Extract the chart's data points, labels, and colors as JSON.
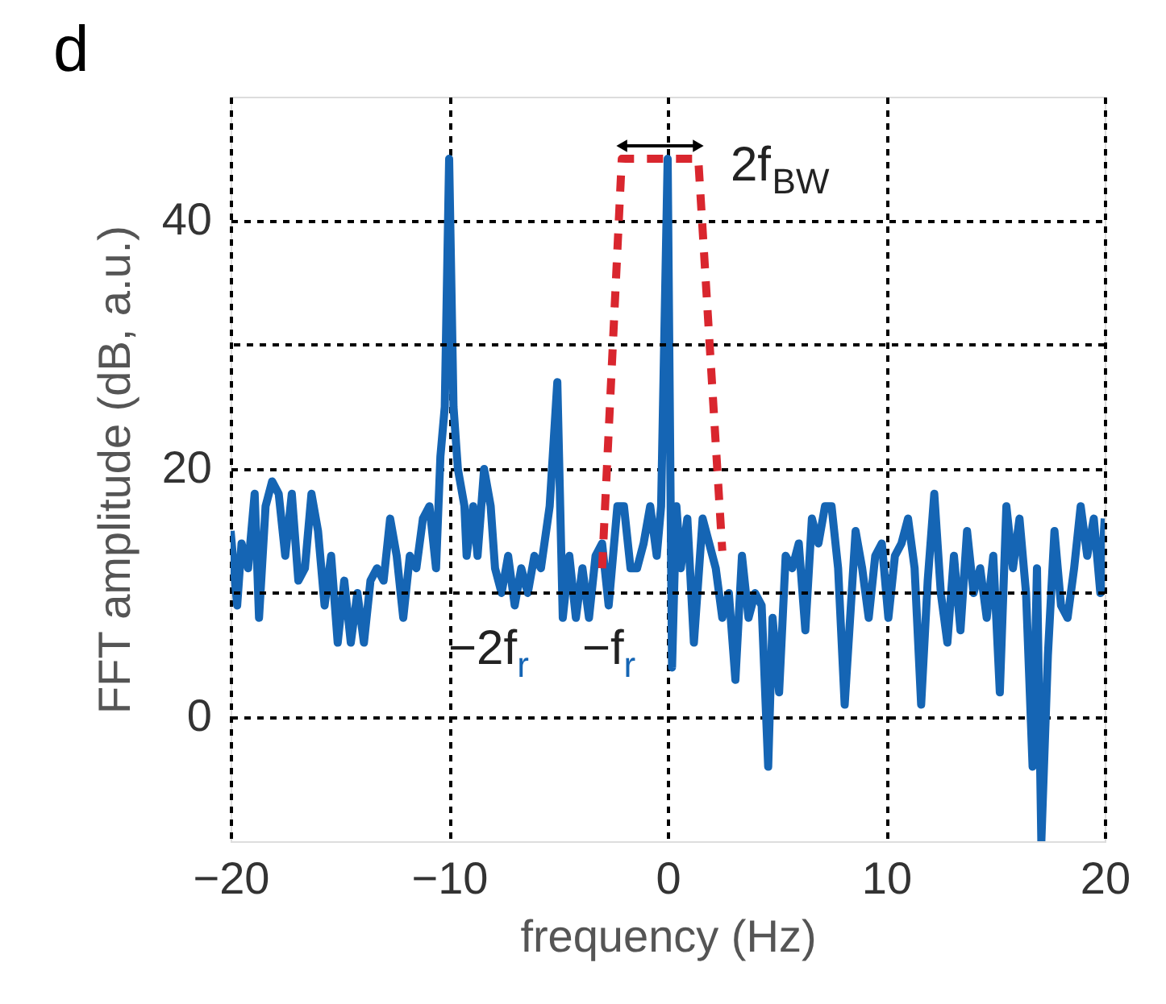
{
  "chart_data": {
    "type": "line",
    "title": "d",
    "xlabel": "frequency (Hz)",
    "ylabel": "FFT amplitude (dB, a.u.)",
    "xlim": [
      -20,
      20
    ],
    "xticks": [
      -20,
      -10,
      0,
      10,
      20
    ],
    "ylim": [
      -10,
      50
    ],
    "yticks": [
      0,
      20,
      40
    ],
    "grid": true,
    "series": [
      {
        "color": "#1565b4",
        "x": [
          -20,
          -19.7,
          -19.5,
          -19.2,
          -18.9,
          -18.7,
          -18.4,
          -18.1,
          -17.8,
          -17.5,
          -17.2,
          -16.9,
          -16.6,
          -16.3,
          -16,
          -15.7,
          -15.4,
          -15.1,
          -14.8,
          -14.5,
          -14.2,
          -13.9,
          -13.6,
          -13.3,
          -13,
          -12.7,
          -12.4,
          -12.1,
          -11.8,
          -11.5,
          -11.2,
          -10.9,
          -10.6,
          -10.4,
          -10.2,
          -10,
          -9.8,
          -9.6,
          -9.3,
          -9.2,
          -8.9,
          -8.7,
          -8.4,
          -8.1,
          -7.9,
          -7.6,
          -7.3,
          -7,
          -6.7,
          -6.4,
          -6.1,
          -5.8,
          -5.4,
          -5.05,
          -4.8,
          -4.5,
          -4.2,
          -3.9,
          -3.6,
          -3.3,
          -3,
          -2.7,
          -2.3,
          -2,
          -1.7,
          -1.4,
          -1.1,
          -0.8,
          -0.5,
          -0.3,
          0,
          0.2,
          0.4,
          0.6,
          0.9,
          1.2,
          1.6,
          1.9,
          2.2,
          2.5,
          2.8,
          3.1,
          3.4,
          3.7,
          4,
          4.3,
          4.6,
          4.8,
          5.1,
          5.4,
          5.7,
          6,
          6.3,
          6.6,
          6.9,
          7.2,
          7.5,
          7.8,
          8.1,
          8.6,
          8.9,
          9.2,
          9.5,
          9.8,
          10.1,
          10.4,
          10.7,
          11,
          11.3,
          11.6,
          11.9,
          12.2,
          12.5,
          12.8,
          13.1,
          13.4,
          13.7,
          14,
          14.3,
          14.6,
          14.9,
          15.2,
          15.5,
          15.8,
          16.1,
          16.4,
          16.7,
          16.9,
          17.1,
          17.4,
          17.7,
          18,
          18.3,
          18.6,
          18.9,
          19.2,
          19.5,
          19.8,
          20
        ],
        "values": [
          15,
          9,
          14,
          12,
          18,
          8,
          17,
          19,
          18,
          13,
          18,
          11,
          12,
          18,
          15,
          9,
          13,
          6,
          11,
          6,
          10,
          6,
          11,
          12,
          11,
          16,
          13,
          8,
          13,
          12,
          16,
          17,
          12,
          21,
          25,
          45,
          25,
          20,
          17,
          13,
          17,
          13,
          20,
          17,
          12,
          10,
          13,
          9,
          12,
          10,
          13,
          12,
          17,
          27,
          8,
          13,
          8,
          12,
          8,
          13,
          14,
          9,
          17,
          17,
          12,
          12,
          14,
          17,
          13,
          17,
          45,
          4,
          17,
          12,
          16,
          6,
          16,
          14,
          12,
          8,
          10,
          3,
          13,
          8,
          10,
          9,
          -4,
          8,
          2,
          13,
          12,
          14,
          7,
          16,
          14,
          17,
          17,
          12,
          1,
          15,
          12,
          8,
          13,
          14,
          8,
          13,
          14,
          16,
          12,
          1,
          11,
          18,
          10,
          6,
          13,
          7,
          15,
          10,
          12,
          8,
          13,
          2,
          17,
          12,
          16,
          10,
          -4,
          12,
          -10,
          5,
          15,
          9,
          8,
          12,
          17,
          13,
          16,
          10,
          16
        ]
      },
      {
        "color": "#d9262e",
        "line_style": "dashed",
        "x": [
          -3.0,
          -2.1,
          1.4,
          2.5
        ],
        "values": [
          12,
          45,
          45,
          13.4
        ]
      }
    ],
    "annotations": [
      "2f$_{BW}$",
      "−2f$_{r}$",
      "−f$_{r}$"
    ]
  }
}
